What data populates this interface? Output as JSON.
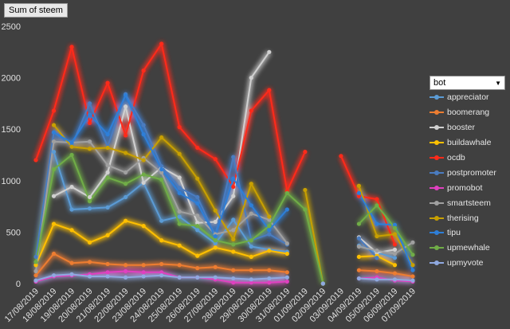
{
  "header": {
    "field_button_label": "Sum of steem"
  },
  "legend": {
    "field_label": "bot",
    "dropdown_icon": "dropdown-arrow-icon"
  },
  "chart_data": {
    "type": "line",
    "ylim": [
      0,
      2500
    ],
    "yticks": [
      0,
      500,
      1000,
      1500,
      2000,
      2500
    ],
    "grid": false,
    "legend_position": "right",
    "categories": [
      "17/08/2019",
      "18/08/2019",
      "19/08/2019",
      "20/08/2019",
      "21/08/2019",
      "22/08/2019",
      "23/08/2019",
      "24/08/2019",
      "25/08/2019",
      "26/08/2019",
      "27/08/2019",
      "28/08/2019",
      "29/08/2019",
      "30/08/2019",
      "31/08/2019",
      "01/09/2019",
      "02/09/2019",
      "03/09/2019",
      "04/09/2019",
      "05/09/2019",
      "06/09/2019",
      "07/09/2019"
    ],
    "series": [
      {
        "name": "appreciator",
        "color": "#5b9bd5",
        "values": [
          null,
          1280,
          720,
          730,
          740,
          840,
          980,
          610,
          650,
          520,
          390,
          620,
          360,
          330,
          310,
          null,
          0,
          null,
          370,
          300,
          250,
          null
        ]
      },
      {
        "name": "boomerang",
        "color": "#ed7d31",
        "values": [
          80,
          290,
          200,
          210,
          190,
          180,
          180,
          190,
          180,
          150,
          160,
          130,
          130,
          130,
          110,
          null,
          0,
          null,
          130,
          120,
          100,
          70
        ]
      },
      {
        "name": "booster",
        "color": "#d0d0d0",
        "values": [
          null,
          850,
          940,
          840,
          1080,
          1720,
          980,
          1130,
          1030,
          590,
          600,
          850,
          2000,
          2250,
          null,
          null,
          0,
          null,
          450,
          300,
          330,
          null
        ]
      },
      {
        "name": "buildawhale",
        "color": "#ffc000",
        "values": [
          180,
          580,
          520,
          400,
          470,
          610,
          560,
          420,
          370,
          270,
          350,
          310,
          260,
          320,
          290,
          null,
          0,
          null,
          260,
          270,
          180,
          null
        ]
      },
      {
        "name": "ocdb",
        "color": "#ff2a1a",
        "values": [
          1200,
          1680,
          2300,
          1560,
          1950,
          1440,
          2070,
          2330,
          1520,
          1320,
          1210,
          940,
          1680,
          1880,
          900,
          1280,
          null,
          1240,
          850,
          820,
          380,
          null
        ]
      },
      {
        "name": "postpromoter",
        "color": "#4a7cc0",
        "values": [
          260,
          1470,
          1340,
          1750,
          1330,
          1840,
          1540,
          1140,
          930,
          840,
          470,
          1230,
          420,
          480,
          380,
          null,
          0,
          null,
          440,
          250,
          null,
          null
        ]
      },
      {
        "name": "promobot",
        "color": "#e040c0",
        "values": [
          20,
          70,
          80,
          90,
          110,
          120,
          110,
          110,
          60,
          60,
          40,
          10,
          10,
          10,
          20,
          null,
          0,
          null,
          50,
          60,
          30,
          20
        ]
      },
      {
        "name": "smartsteem",
        "color": "#a0a0a0",
        "values": [
          120,
          1380,
          1370,
          1380,
          1150,
          1080,
          1220,
          1080,
          700,
          660,
          480,
          520,
          680,
          620,
          390,
          null,
          0,
          null,
          360,
          320,
          290,
          400
        ]
      },
      {
        "name": "therising",
        "color": "#c8a000",
        "values": [
          null,
          1540,
          1330,
          1310,
          1320,
          1270,
          1200,
          1420,
          1260,
          1020,
          710,
          430,
          970,
          650,
          null,
          910,
          0,
          null,
          950,
          460,
          480,
          180
        ]
      },
      {
        "name": "tipu",
        "color": "#2e7fd8",
        "values": [
          null,
          1470,
          1370,
          1640,
          1450,
          1830,
          1450,
          1110,
          880,
          780,
          460,
          1020,
          760,
          520,
          720,
          null,
          0,
          null,
          880,
          580,
          570,
          130
        ]
      },
      {
        "name": "upmewhale",
        "color": "#70ad47",
        "values": [
          210,
          1110,
          1250,
          800,
          1030,
          970,
          1060,
          1010,
          580,
          560,
          420,
          380,
          420,
          560,
          880,
          720,
          0,
          null,
          580,
          760,
          540,
          280
        ]
      },
      {
        "name": "upmyvote",
        "color": "#8fa9e0",
        "values": [
          30,
          80,
          90,
          70,
          70,
          60,
          70,
          80,
          60,
          60,
          60,
          50,
          40,
          50,
          60,
          null,
          0,
          null,
          50,
          40,
          40,
          30
        ]
      }
    ]
  }
}
